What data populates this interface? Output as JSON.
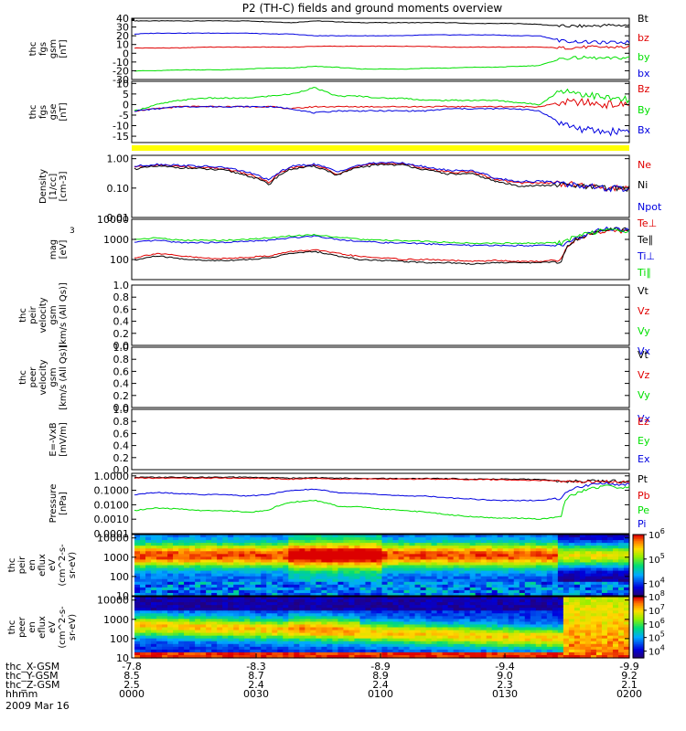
{
  "title": "P2 (TH-C) fields and ground moments overview",
  "date": "2009 Mar 16",
  "colors": {
    "black": "#000000",
    "red": "#e00000",
    "green": "#00e000",
    "blue": "#0000e0",
    "yellow": "#ffff00"
  },
  "chart_data": [
    {
      "type": "line",
      "id": "fgs_gsm",
      "ylabel": [
        "thc",
        "fgs",
        "gsm",
        "[nT]"
      ],
      "ylim": [
        -30,
        40
      ],
      "yticks": [
        -30,
        -20,
        -10,
        0,
        10,
        20,
        30,
        40
      ],
      "series": [
        {
          "name": "Bt",
          "color": "#000000",
          "values": [
            37,
            37,
            37,
            37,
            37,
            37,
            36,
            35,
            37,
            36,
            35,
            35,
            35,
            35,
            35,
            34,
            34,
            34,
            33,
            31,
            31,
            32,
            32
          ]
        },
        {
          "name": "bz",
          "color": "#e00000",
          "values": [
            6,
            6,
            6,
            7,
            7,
            7,
            7,
            7,
            8,
            8,
            8,
            8,
            8,
            8,
            7,
            7,
            7,
            7,
            7,
            6,
            7,
            7,
            7
          ]
        },
        {
          "name": "by",
          "color": "#00e000",
          "values": [
            -20,
            -20,
            -19,
            -19,
            -19,
            -18,
            -17,
            -17,
            -15,
            -16,
            -18,
            -18,
            -18,
            -17,
            -17,
            -16,
            -16,
            -15,
            -14,
            -6,
            -5,
            -6,
            -5
          ]
        },
        {
          "name": "bx",
          "color": "#0000e0",
          "values": [
            22,
            23,
            23,
            23,
            23,
            23,
            22,
            22,
            20,
            20,
            20,
            20,
            20,
            21,
            21,
            21,
            21,
            20,
            20,
            14,
            13,
            12,
            13
          ]
        }
      ]
    },
    {
      "type": "line",
      "id": "fgs_gse",
      "ylabel": [
        "thc",
        "fgs",
        "gse",
        "[nT]"
      ],
      "ylim": [
        -18,
        11
      ],
      "yticks": [
        -15,
        -10,
        -5,
        0,
        5,
        10
      ],
      "series": [
        {
          "name": "Bz",
          "color": "#e00000",
          "values": [
            -3,
            -2,
            -1,
            -1,
            -1,
            -1,
            -1,
            -2,
            -1,
            -1,
            -1,
            -1,
            -1,
            -1,
            -1,
            -1,
            -1,
            -1,
            -1,
            1,
            1,
            0,
            0
          ]
        },
        {
          "name": "By",
          "color": "#00e000",
          "values": [
            -3,
            0,
            2,
            3,
            3,
            3,
            4,
            5,
            8,
            4,
            4,
            3,
            3,
            2,
            2,
            2,
            2,
            1,
            0,
            7,
            5,
            3,
            2
          ]
        },
        {
          "name": "Bx",
          "color": "#0000e0",
          "values": [
            -3,
            -2,
            -1,
            -1,
            -1,
            -1,
            -1,
            -2,
            -4,
            -3,
            -3,
            -3,
            -3,
            -3,
            -2,
            -2,
            -2,
            -2,
            -3,
            -9,
            -12,
            -13,
            -12
          ]
        }
      ]
    },
    {
      "type": "line",
      "id": "density",
      "ylabel": [
        "Density",
        "[1/cc]",
        "[cm-3]"
      ],
      "yscale": "log",
      "ylim": [
        0.01,
        1.3
      ],
      "yticks": [
        "1.00",
        "0.10",
        "0.01"
      ],
      "series": [
        {
          "name": "Ne",
          "color": "#e00000",
          "values": [
            0.5,
            0.6,
            0.55,
            0.5,
            0.45,
            0.3,
            0.15,
            0.5,
            0.6,
            0.3,
            0.55,
            0.7,
            0.65,
            0.45,
            0.35,
            0.35,
            0.2,
            0.15,
            0.15,
            0.15,
            0.12,
            0.1,
            0.1
          ]
        },
        {
          "name": "Ni",
          "color": "#000000",
          "values": [
            0.45,
            0.55,
            0.5,
            0.45,
            0.4,
            0.27,
            0.13,
            0.45,
            0.55,
            0.27,
            0.5,
            0.65,
            0.6,
            0.4,
            0.3,
            0.3,
            0.17,
            0.12,
            0.12,
            0.13,
            0.11,
            0.1,
            0.1
          ]
        },
        {
          "name": "Npot",
          "color": "#0000e0",
          "values": [
            0.55,
            0.65,
            0.6,
            0.55,
            0.5,
            0.35,
            0.18,
            0.55,
            0.65,
            0.35,
            0.6,
            0.75,
            0.7,
            0.5,
            0.4,
            0.4,
            0.22,
            0.17,
            0.17,
            0.15,
            0.12,
            0.1,
            0.09
          ]
        }
      ]
    },
    {
      "type": "line",
      "id": "temperature",
      "ylabel": [
        "mag",
        "[eV]"
      ],
      "ylabel_exponent": "3",
      "yscale": "log",
      "ylim": [
        10,
        10000
      ],
      "yticks": [
        "10000",
        "1000",
        "100"
      ],
      "series": [
        {
          "name": "Te⊥",
          "color": "#e00000",
          "values": [
            120,
            200,
            150,
            120,
            110,
            130,
            150,
            250,
            300,
            200,
            140,
            120,
            100,
            100,
            90,
            80,
            90,
            80,
            80,
            100,
            1500,
            3000,
            2500
          ]
        },
        {
          "name": "Te∥",
          "color": "#000000",
          "values": [
            90,
            150,
            110,
            90,
            90,
            100,
            120,
            200,
            250,
            150,
            100,
            90,
            80,
            70,
            70,
            60,
            70,
            70,
            70,
            80,
            1500,
            3500,
            3000
          ]
        },
        {
          "name": "Ti⊥",
          "color": "#0000e0",
          "values": [
            700,
            900,
            700,
            700,
            700,
            800,
            900,
            1200,
            1500,
            1000,
            800,
            700,
            650,
            600,
            550,
            500,
            500,
            500,
            500,
            500,
            1500,
            3500,
            2800
          ]
        },
        {
          "name": "Ti∥",
          "color": "#00e000",
          "values": [
            1000,
            1200,
            900,
            900,
            900,
            1000,
            1200,
            1500,
            1700,
            1300,
            1000,
            900,
            850,
            800,
            700,
            650,
            650,
            650,
            650,
            700,
            1800,
            3000,
            2500
          ]
        }
      ]
    },
    {
      "type": "line",
      "id": "peir_velocity",
      "ylabel": [
        "thc",
        "peir",
        "velocity",
        "gsm",
        "[km/s (All Qs)]"
      ],
      "ylim": [
        0,
        1
      ],
      "yticks": [
        "0.0",
        "0.2",
        "0.4",
        "0.6",
        "0.8",
        "1.0"
      ],
      "series": [
        {
          "name": "Vt",
          "color": "#000000"
        },
        {
          "name": "Vz",
          "color": "#e00000"
        },
        {
          "name": "Vy",
          "color": "#00e000"
        },
        {
          "name": "Vx",
          "color": "#0000e0"
        }
      ]
    },
    {
      "type": "line",
      "id": "peer_velocity",
      "ylabel": [
        "thc",
        "peer",
        "velocity",
        "gsm",
        "[km/s (All Qs)]"
      ],
      "ylim": [
        0,
        1
      ],
      "yticks": [
        "0.0",
        "0.2",
        "0.4",
        "0.6",
        "0.8",
        "1.0"
      ],
      "series": [
        {
          "name": "Vt",
          "color": "#000000"
        },
        {
          "name": "Vz",
          "color": "#e00000"
        },
        {
          "name": "Vy",
          "color": "#00e000"
        },
        {
          "name": "Vx",
          "color": "#0000e0"
        }
      ]
    },
    {
      "type": "line",
      "id": "efield",
      "ylabel": [
        "E=-VxB",
        "[mV/m]"
      ],
      "ylim": [
        0,
        1
      ],
      "yticks": [
        "0.0",
        "0.2",
        "0.4",
        "0.6",
        "0.8",
        "1.0"
      ],
      "series": [
        {
          "name": "Ez",
          "color": "#e00000"
        },
        {
          "name": "Ey",
          "color": "#00e000"
        },
        {
          "name": "Ex",
          "color": "#0000e0"
        }
      ]
    },
    {
      "type": "line",
      "id": "pressure",
      "ylabel": [
        "Pressure",
        "[nPa]"
      ],
      "yscale": "log",
      "ylim": [
        0.0001,
        1.5
      ],
      "yticks": [
        "1.0000",
        "0.1000",
        "0.0100",
        "0.0010",
        "0.0001"
      ],
      "series": [
        {
          "name": "Pt",
          "color": "#000000",
          "values": [
            0.8,
            0.8,
            0.8,
            0.8,
            0.8,
            0.8,
            0.75,
            0.7,
            0.75,
            0.7,
            0.65,
            0.65,
            0.65,
            0.65,
            0.65,
            0.6,
            0.6,
            0.6,
            0.55,
            0.45,
            0.45,
            0.45,
            0.4
          ]
        },
        {
          "name": "Pb",
          "color": "#e00000",
          "values": [
            0.7,
            0.7,
            0.7,
            0.7,
            0.7,
            0.7,
            0.65,
            0.6,
            0.65,
            0.6,
            0.6,
            0.6,
            0.6,
            0.6,
            0.6,
            0.55,
            0.55,
            0.5,
            0.5,
            0.4,
            0.4,
            0.4,
            0.35
          ]
        },
        {
          "name": "Pe",
          "color": "#00e000",
          "values": [
            0.004,
            0.006,
            0.005,
            0.004,
            0.004,
            0.003,
            0.004,
            0.015,
            0.02,
            0.008,
            0.007,
            0.005,
            0.004,
            0.003,
            0.002,
            0.0015,
            0.0012,
            0.0012,
            0.001,
            0.0015,
            0.1,
            0.2,
            0.15
          ]
        },
        {
          "name": "Pi",
          "color": "#0000e0",
          "values": [
            0.05,
            0.07,
            0.06,
            0.05,
            0.05,
            0.04,
            0.05,
            0.1,
            0.12,
            0.07,
            0.06,
            0.05,
            0.04,
            0.04,
            0.03,
            0.025,
            0.02,
            0.02,
            0.02,
            0.03,
            0.2,
            0.3,
            0.25
          ]
        }
      ]
    },
    {
      "type": "heatmap",
      "id": "peir_spectrogram",
      "ylabel": [
        "thc",
        "peir",
        "en",
        "eflux",
        "eV",
        "(cm^2-s-",
        "sr-eV)"
      ],
      "yscale": "log",
      "ylim": [
        10,
        15000
      ],
      "yticks": [
        "10000",
        "1000",
        "100",
        "10"
      ],
      "colorbar": {
        "min_exp": 3.5,
        "max_exp": 6,
        "ticks": [
          {
            "base": "10",
            "exp": "6"
          },
          {
            "base": "10",
            "exp": "5"
          },
          {
            "base": "10",
            "exp": "4"
          }
        ]
      }
    },
    {
      "type": "heatmap",
      "id": "peer_spectrogram",
      "ylabel": [
        "thc",
        "peer",
        "en",
        "eflux",
        "eV",
        "(cm^2-s-",
        "sr-eV)"
      ],
      "yscale": "log",
      "ylim": [
        10,
        15000
      ],
      "yticks": [
        "10000",
        "1000",
        "100",
        "10"
      ],
      "colorbar": {
        "min_exp": 3.5,
        "max_exp": 8,
        "ticks": [
          {
            "base": "10",
            "exp": "8"
          },
          {
            "base": "10",
            "exp": "7"
          },
          {
            "base": "10",
            "exp": "6"
          },
          {
            "base": "10",
            "exp": "5"
          },
          {
            "base": "10",
            "exp": "4"
          }
        ]
      }
    }
  ],
  "xaxis": {
    "row_labels": [
      "thc_X-GSM",
      "thc_Y-GSM",
      "thc_Z-GSM",
      "hhmm"
    ],
    "ticks": [
      {
        "t": 0,
        "X": "-7.8",
        "Y": "8.5",
        "Z": "2.5",
        "hhmm": "0000"
      },
      {
        "t": 30,
        "X": "-8.3",
        "Y": "8.7",
        "Z": "2.4",
        "hhmm": "0030"
      },
      {
        "t": 60,
        "X": "-8.9",
        "Y": "8.9",
        "Z": "2.4",
        "hhmm": "0100"
      },
      {
        "t": 90,
        "X": "-9.4",
        "Y": "9.0",
        "Z": "2.3",
        "hhmm": "0130"
      },
      {
        "t": 120,
        "X": "-9.9",
        "Y": "9.2",
        "Z": "2.1",
        "hhmm": "0200"
      }
    ]
  }
}
